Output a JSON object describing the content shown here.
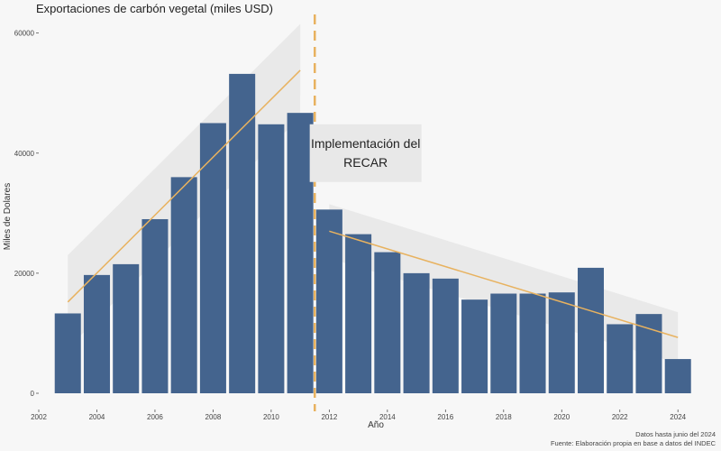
{
  "chart_data": {
    "type": "bar",
    "title": "Exportaciones de carbón vegetal (miles USD)",
    "xlabel": "Año",
    "ylabel": "Miles de Dolares",
    "categories": [
      2003,
      2004,
      2005,
      2006,
      2007,
      2008,
      2009,
      2010,
      2011,
      2012,
      2013,
      2014,
      2015,
      2016,
      2017,
      2018,
      2019,
      2020,
      2021,
      2022,
      2023,
      2024
    ],
    "values": [
      13300,
      19700,
      21500,
      29000,
      36000,
      45000,
      53200,
      44800,
      46700,
      30600,
      26500,
      23500,
      20000,
      19100,
      15600,
      16600,
      16600,
      16800,
      20900,
      11500,
      13200,
      5700
    ],
    "xlim": [
      2002,
      2024.8
    ],
    "ylim": [
      0,
      62500
    ],
    "x_ticks": [
      2002,
      2004,
      2006,
      2008,
      2010,
      2012,
      2014,
      2016,
      2018,
      2020,
      2022,
      2024
    ],
    "y_ticks": [
      0,
      20000,
      40000,
      60000
    ],
    "y_tick_labels": [
      "0",
      "20000",
      "40000",
      "60000"
    ],
    "bar_color": "#3e5f8a",
    "trend_color": "#e8b25f",
    "ribbon_color": "#e6e6e6",
    "vline": {
      "x": 2011.5,
      "color": "#e8b25f"
    },
    "trends": [
      {
        "name": "pre",
        "x": [
          2003,
          2011
        ],
        "y": [
          15200,
          53800
        ],
        "ribbon_upper": [
          23000,
          61500
        ],
        "ribbon_lower": [
          7500,
          46000
        ]
      },
      {
        "name": "post",
        "x": [
          2012,
          2024
        ],
        "y": [
          27000,
          9300
        ],
        "ribbon_upper": [
          31500,
          13500
        ],
        "ribbon_lower": [
          22500,
          5000
        ]
      }
    ],
    "annotation": {
      "lines": [
        "Implementación del",
        "RECAR"
      ],
      "x": 2013.25,
      "y": 40000
    },
    "notes": [
      "Datos hasta junio del 2024",
      "Fuente: Elaboración propia en base a datos del INDEC"
    ]
  }
}
